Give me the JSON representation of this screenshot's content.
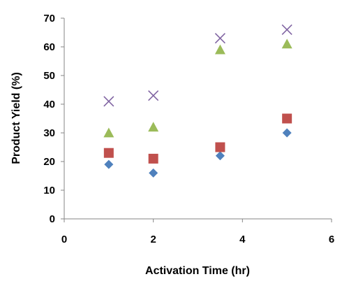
{
  "chart_data": {
    "type": "scatter",
    "title": "",
    "xlabel": "Activation Time (hr)",
    "ylabel": "Product Yield (%)",
    "xlim": [
      0,
      6
    ],
    "ylim": [
      0,
      70
    ],
    "x_ticks": [
      "0",
      "2",
      "4",
      "6"
    ],
    "y_ticks": [
      "0",
      "10",
      "20",
      "30",
      "40",
      "50",
      "60",
      "70"
    ],
    "grid": false,
    "legend": "none",
    "x": [
      1,
      2,
      3.5,
      5
    ],
    "series": [
      {
        "marker": "diamond",
        "color": "#4f81bd",
        "values": [
          19,
          16,
          22,
          30
        ]
      },
      {
        "marker": "square",
        "color": "#c0504d",
        "values": [
          23,
          21,
          25,
          35
        ]
      },
      {
        "marker": "triangle",
        "color": "#9bbb59",
        "values": [
          30,
          32,
          59,
          61
        ]
      },
      {
        "marker": "cross",
        "color": "#8064a2",
        "values": [
          41,
          43,
          63,
          66
        ]
      }
    ]
  }
}
